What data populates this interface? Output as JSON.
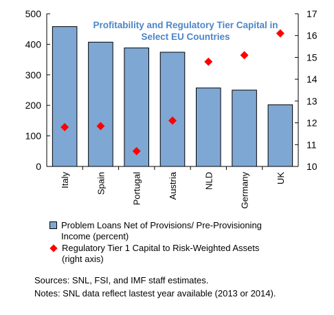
{
  "chart_data": {
    "type": "bar",
    "title": "Profitability and Regulatory Tier Capital in Select EU Countries",
    "title_lines": [
      "Profitability and Regulatory Tier Capital in",
      "Select EU Countries"
    ],
    "categories": [
      "Italy",
      "Spain",
      "Portugal",
      "Austria",
      "NLD",
      "Germany",
      "UK"
    ],
    "series": [
      {
        "name": "Problem Loans Net of Provisions/ Pre-Provisioning Income (percent)",
        "type": "bar",
        "axis": "left",
        "color": "#7fa7d4",
        "values": [
          458,
          407,
          388,
          374,
          257,
          250,
          202
        ]
      },
      {
        "name": "Regulatory Tier 1 Capital to Risk-Weighted Assets (right axis)",
        "type": "scatter",
        "axis": "right",
        "color": "#ff0000",
        "values": [
          11.8,
          11.85,
          10.7,
          12.1,
          14.8,
          15.1,
          16.1
        ]
      }
    ],
    "y_left": {
      "min": 0,
      "max": 500,
      "ticks": [
        0,
        100,
        200,
        300,
        400,
        500
      ]
    },
    "y_right": {
      "min": 10,
      "max": 17,
      "ticks": [
        10,
        11,
        12,
        13,
        14,
        15,
        16,
        17
      ]
    },
    "title_color": "#4a86c8",
    "grid": false,
    "legend_position": "bottom"
  },
  "legend": {
    "bar_label_lines": [
      "Problem Loans Net of Provisions/ Pre-Provisioning",
      "Income (percent)"
    ],
    "marker_label_lines": [
      "Regulatory Tier 1 Capital to Risk-Weighted Assets",
      "(right axis)"
    ]
  },
  "notes": {
    "sources": "Sources: SNL, FSI, and IMF staff estimates.",
    "notes": "Notes: SNL data reflect lastest year available (2013 or 2014)."
  }
}
